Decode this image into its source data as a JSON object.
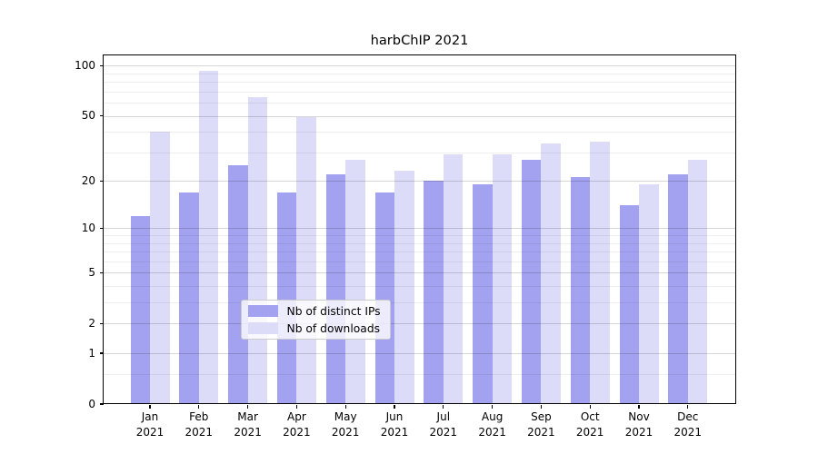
{
  "chart_data": {
    "type": "bar",
    "title": "harbChIP 2021",
    "categories": [
      "Jan 2021",
      "Feb 2021",
      "Mar 2021",
      "Apr 2021",
      "May 2021",
      "Jun 2021",
      "Jul 2021",
      "Aug 2021",
      "Sep 2021",
      "Oct 2021",
      "Nov 2021",
      "Dec 2021"
    ],
    "x": {
      "months": [
        "Jan",
        "Feb",
        "Mar",
        "Apr",
        "May",
        "Jun",
        "Jul",
        "Aug",
        "Sep",
        "Oct",
        "Nov",
        "Dec"
      ],
      "year": "2021"
    },
    "series": [
      {
        "name": "Nb of distinct IPs",
        "color": "#a2a2f0",
        "values": [
          12,
          17,
          25,
          17,
          22,
          17,
          20,
          19,
          27,
          21,
          14,
          22
        ]
      },
      {
        "name": "Nb of downloads",
        "color": "#dcdcf9",
        "values": [
          40,
          93,
          65,
          49,
          27,
          23,
          29,
          29,
          34,
          35,
          19,
          27
        ]
      }
    ],
    "y_axis": {
      "scale": "log1p",
      "major_ticks": [
        0,
        1,
        2,
        5,
        10,
        20,
        50,
        100
      ],
      "minor_gridlines": [
        0.5,
        3,
        4,
        6,
        7,
        8,
        9,
        30,
        40,
        60,
        70,
        80,
        90
      ],
      "range": [
        0,
        115
      ]
    },
    "grid": true,
    "legend": {
      "position": "lower-center",
      "entries": [
        "Nb of distinct IPs",
        "Nb of downloads"
      ]
    }
  }
}
